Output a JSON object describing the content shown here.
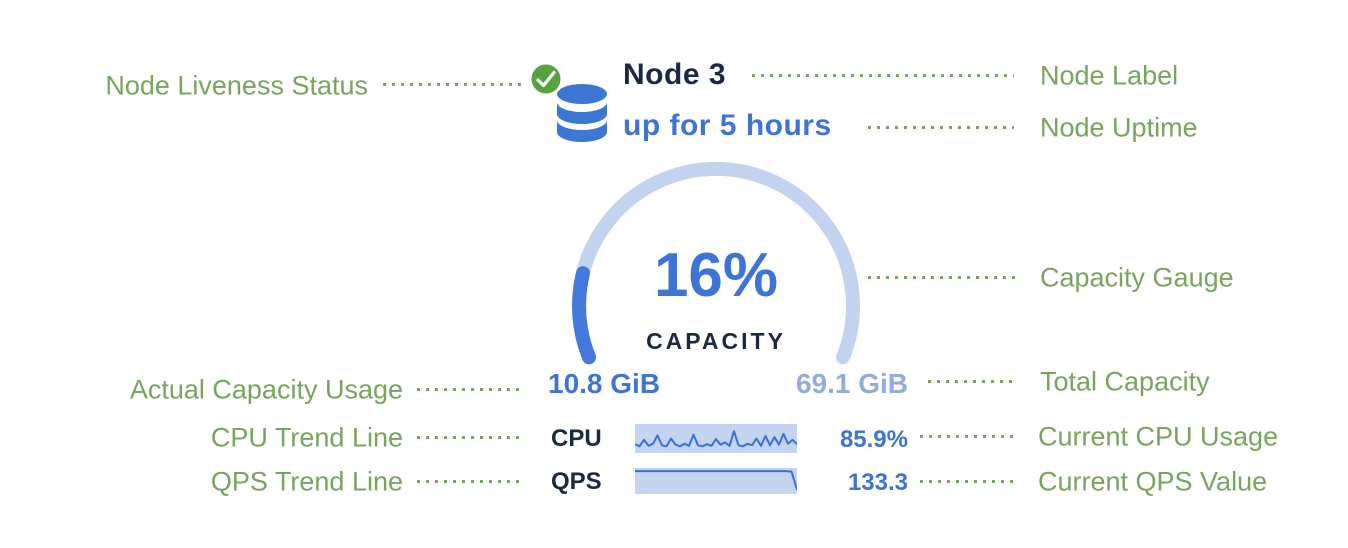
{
  "colors": {
    "annotation_green": "#76a55c",
    "navy": "#1c2945",
    "blue": "#3e73d8",
    "light_blue": "#93abdf",
    "gauge_track": "#c2d3f0",
    "gauge_fill": "#4478db",
    "spark_bg": "#c5d5f1",
    "spark_line": "#3a70d9",
    "check_green": "#55a33f",
    "db_blue": "#3b77d3"
  },
  "node": {
    "label": "Node 3",
    "uptime": "up for 5 hours"
  },
  "gauge": {
    "percent": 16,
    "percent_label": "16%",
    "caption": "CAPACITY",
    "used": "10.8 GiB",
    "total": "69.1 GiB"
  },
  "metrics": {
    "cpu": {
      "label": "CPU",
      "value": "85.9%",
      "trend": [
        0.28,
        0.2,
        0.45,
        0.22,
        0.3,
        0.62,
        0.24,
        0.2,
        0.5,
        0.26,
        0.2,
        0.3,
        0.22,
        0.65,
        0.24,
        0.2,
        0.28,
        0.22,
        0.48,
        0.26,
        0.35,
        0.22,
        0.78,
        0.24,
        0.2,
        0.3,
        0.24,
        0.5,
        0.22,
        0.6,
        0.24,
        0.55,
        0.26,
        0.68,
        0.3,
        0.45,
        0.28
      ]
    },
    "qps": {
      "label": "QPS",
      "value": "133.3",
      "trend": [
        0.93,
        0.93,
        0.93,
        0.93,
        0.93,
        0.93,
        0.93,
        0.93,
        0.93,
        0.93,
        0.93,
        0.93,
        0.93,
        0.93,
        0.93,
        0.93,
        0.93,
        0.93,
        0.93,
        0.93,
        0.93,
        0.93,
        0.93,
        0.93,
        0.93,
        0.93,
        0.93,
        0.93,
        0.93,
        0.9,
        0.12
      ]
    }
  },
  "annotations": {
    "left": [
      "Node Liveness Status",
      "Actual Capacity Usage",
      "CPU Trend Line",
      "QPS Trend Line"
    ],
    "right": [
      "Node Label",
      "Node Uptime",
      "Capacity Gauge",
      "Total Capacity",
      "Current CPU Usage",
      "Current QPS Value"
    ]
  }
}
